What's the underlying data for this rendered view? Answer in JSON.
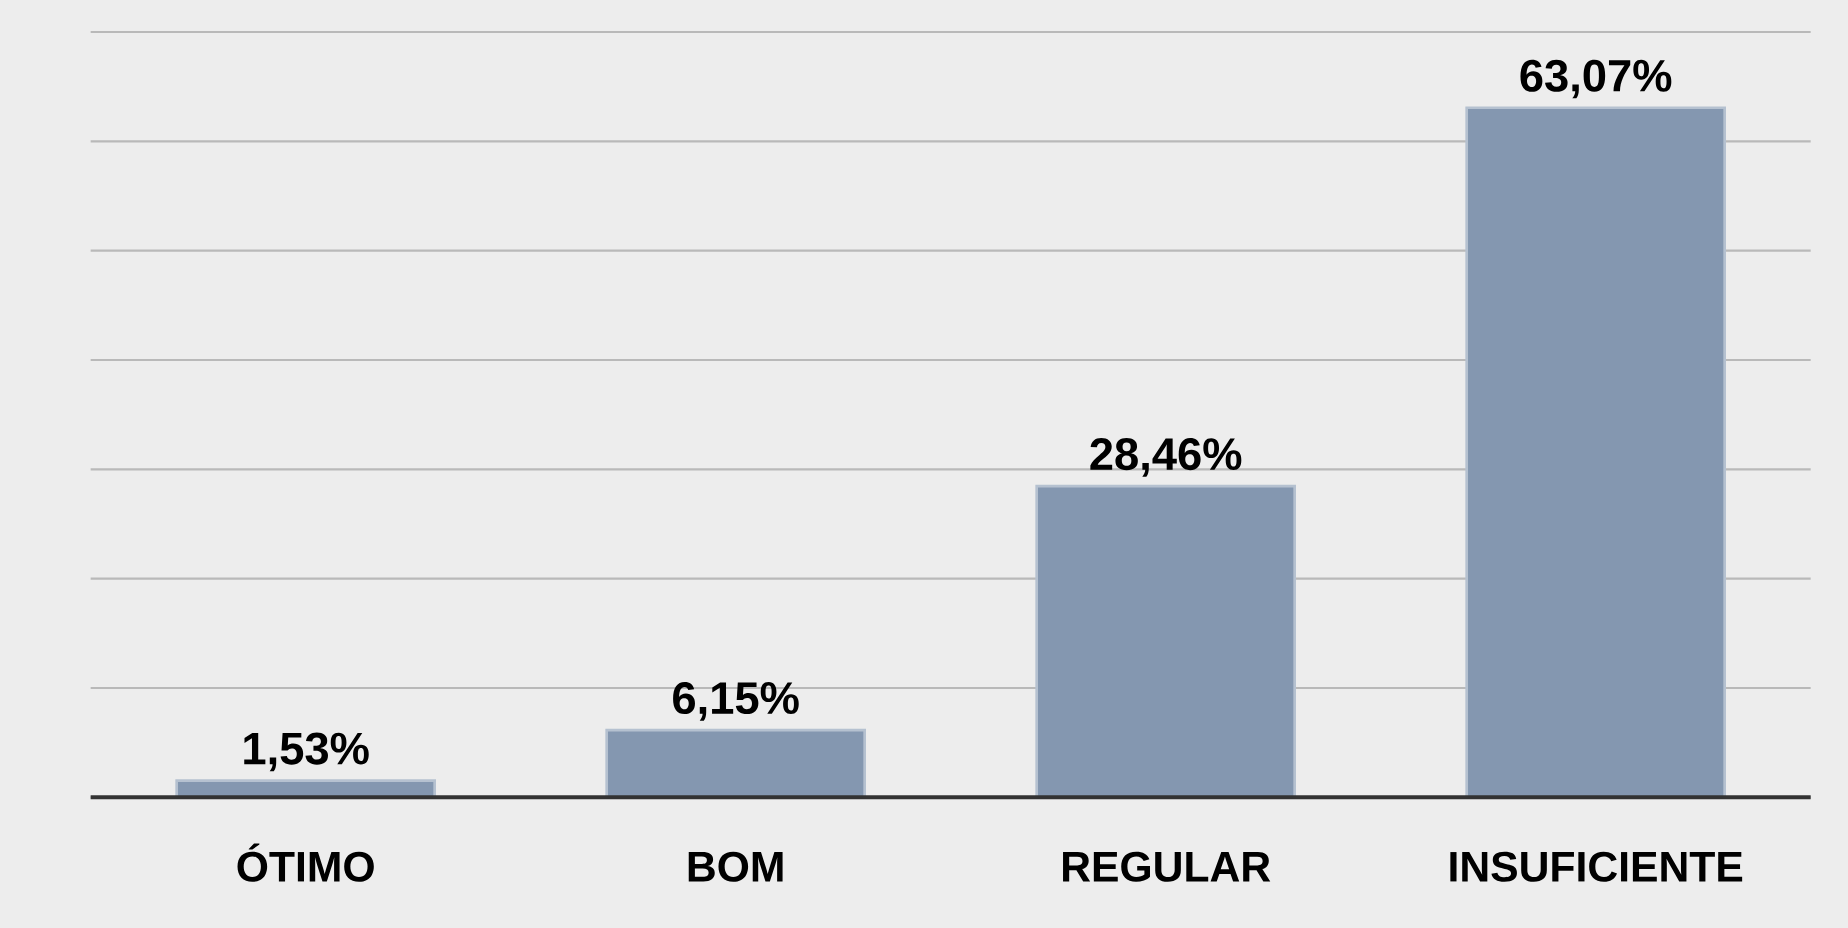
{
  "chart_data": {
    "type": "bar",
    "categories": [
      "ÓTIMO",
      "BOM",
      "REGULAR",
      "INSUFICIENTE"
    ],
    "values": [
      1.53,
      6.15,
      28.46,
      63.07
    ],
    "value_labels": [
      "1,53%",
      "6,15%",
      "28,46%",
      "63,07%"
    ],
    "color": "#8497b0",
    "ylim": [
      0,
      70
    ],
    "yticks": [
      {
        "value": 0,
        "label": null
      },
      {
        "value": 10,
        "label": null
      },
      {
        "value": 20,
        "label": null
      },
      {
        "value": 30,
        "label": null
      },
      {
        "value": 40,
        "label": null
      },
      {
        "value": 50,
        "label": null
      },
      {
        "value": 60,
        "label": null
      },
      {
        "value": 70,
        "label": null
      }
    ],
    "tick_labels": "x",
    "grid": "y"
  }
}
